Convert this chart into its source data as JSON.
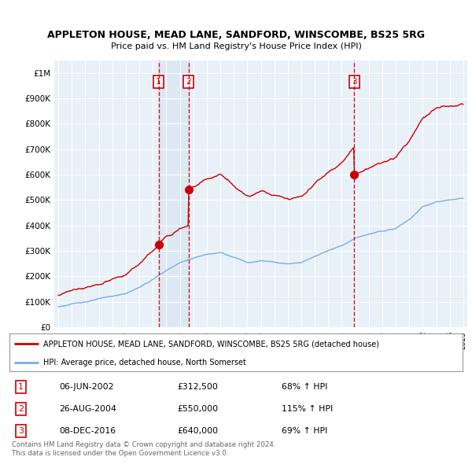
{
  "title": "APPLETON HOUSE, MEAD LANE, SANDFORD, WINSCOMBE, BS25 5RG",
  "subtitle": "Price paid vs. HM Land Registry's House Price Index (HPI)",
  "legend_line1": "APPLETON HOUSE, MEAD LANE, SANDFORD, WINSCOMBE, BS25 5RG (detached house)",
  "legend_line2": "HPI: Average price, detached house, North Somerset",
  "footer1": "Contains HM Land Registry data © Crown copyright and database right 2024.",
  "footer2": "This data is licensed under the Open Government Licence v3.0.",
  "transactions": [
    {
      "num": 1,
      "date": "06-JUN-2002",
      "price": 312500,
      "pct": "68%",
      "dir": "↑",
      "year_x": 2002.43
    },
    {
      "num": 2,
      "date": "26-AUG-2004",
      "price": 550000,
      "pct": "115%",
      "dir": "↑",
      "year_x": 2004.65
    },
    {
      "num": 3,
      "date": "08-DEC-2016",
      "price": 640000,
      "pct": "69%",
      "dir": "↑",
      "year_x": 2016.93
    }
  ],
  "ylim": [
    0,
    1050000
  ],
  "yticks": [
    0,
    100000,
    200000,
    300000,
    400000,
    500000,
    600000,
    700000,
    800000,
    900000,
    1000000
  ],
  "ytick_labels": [
    "£0",
    "£100K",
    "£200K",
    "£300K",
    "£400K",
    "£500K",
    "£600K",
    "£700K",
    "£800K",
    "£900K",
    "£1M"
  ],
  "red_color": "#cc0000",
  "blue_color": "#7aade0",
  "blue_fill": "#dae8f5",
  "grid_color": "#cccccc",
  "bg_color": "#ffffff",
  "chart_bg": "#e8f0f8",
  "xlim_left": 1994.7,
  "xlim_right": 2025.3
}
